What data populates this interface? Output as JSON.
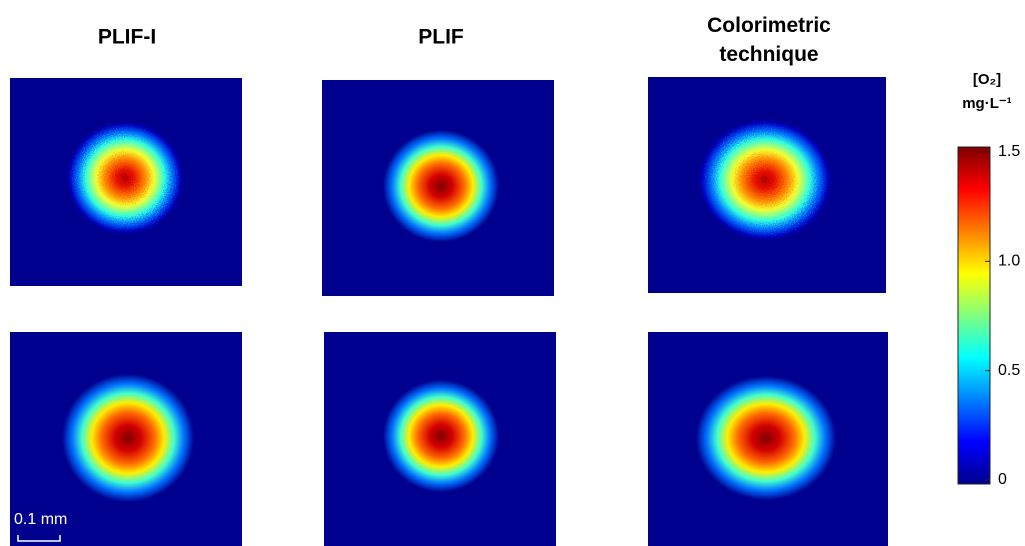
{
  "columns": [
    "PLIF-I",
    "PLIF",
    "Colorimetric technique"
  ],
  "colorbar": {
    "label": [
      "[O₂]",
      "mg·L⁻¹"
    ],
    "lim": [
      0,
      1.5
    ],
    "ticks": [
      0,
      0.5,
      {
        "value": 1,
        "label": "1.0"
      },
      1.5
    ]
  },
  "scale_bar": "0.1 mm"
}
